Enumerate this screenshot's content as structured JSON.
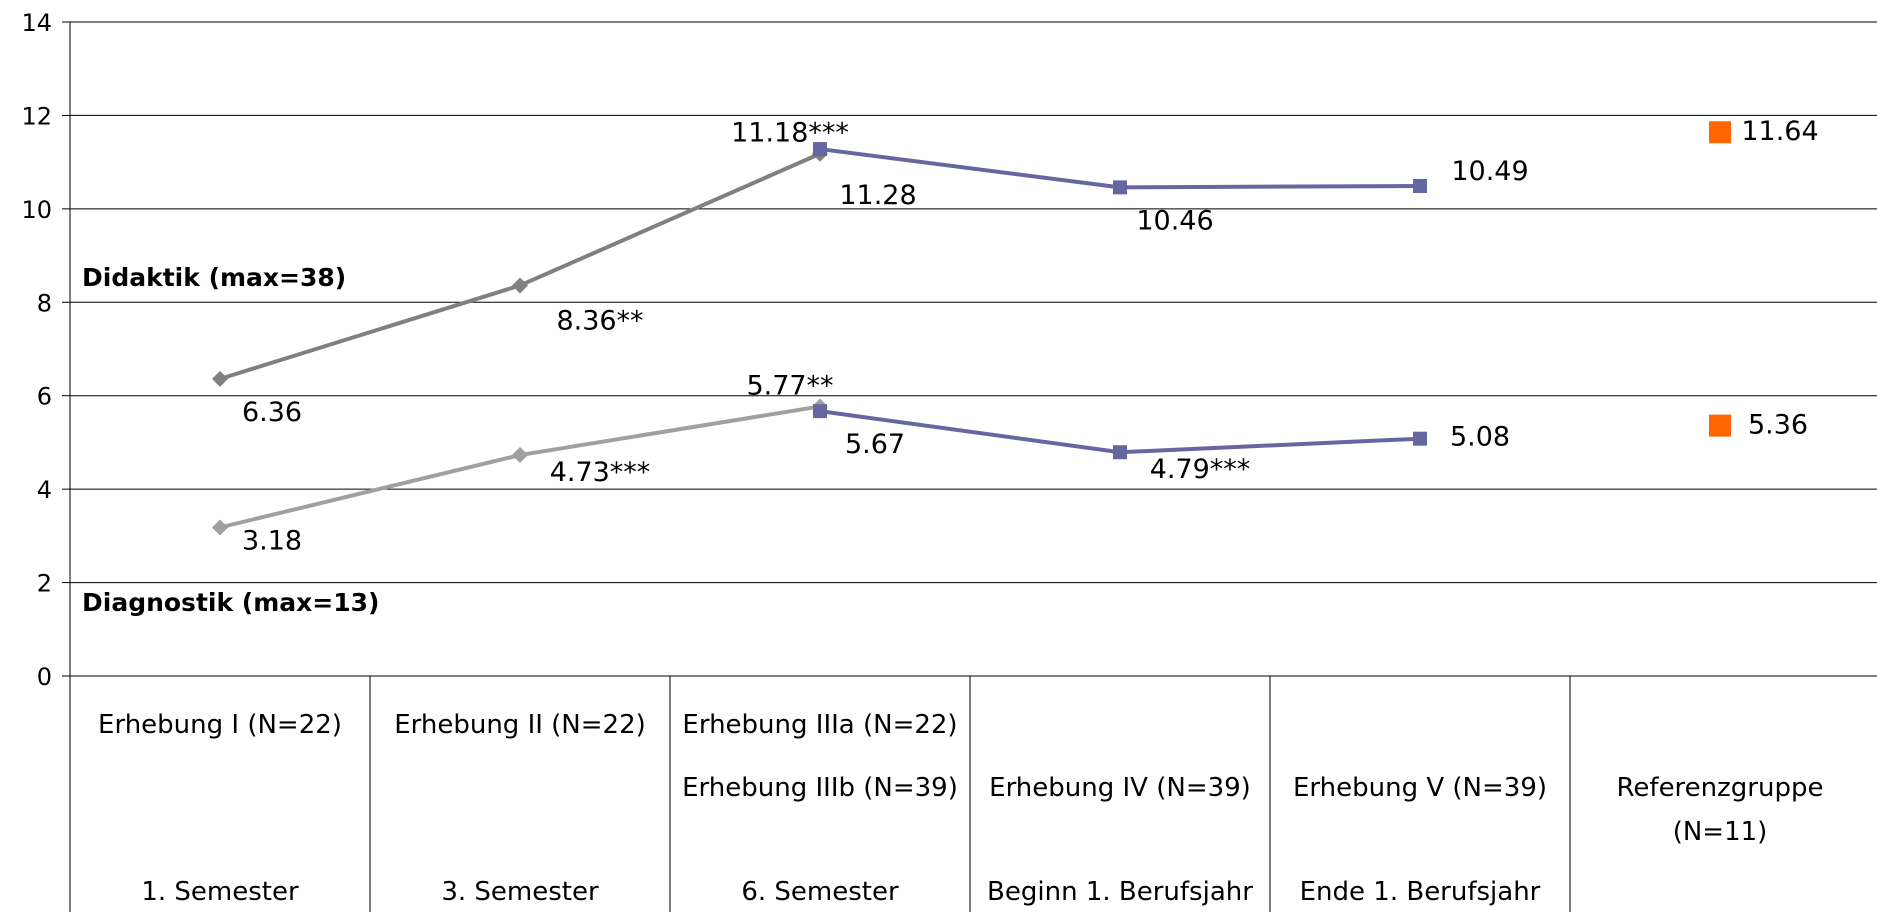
{
  "colors": {
    "gray_dark": "#808080",
    "gray_light": "#a0a0a0",
    "purple": "#6666a0",
    "orange": "#ff6600",
    "grid": "#000000"
  },
  "chart_data": {
    "type": "line",
    "ylim": [
      0,
      14
    ],
    "y_ticks": [
      "0",
      "2",
      "4",
      "6",
      "8",
      "10",
      "12",
      "14"
    ],
    "grid": true,
    "categories": [
      {
        "lines": [
          "Erhebung I (N=22)",
          "",
          "1. Semester"
        ]
      },
      {
        "lines": [
          "Erhebung II (N=22)",
          "",
          "3. Semester"
        ]
      },
      {
        "lines": [
          "Erhebung IIIa (N=22)",
          "Erhebung IIIb (N=39)",
          "6. Semester"
        ]
      },
      {
        "lines": [
          "",
          "Erhebung IV (N=39)",
          "Beginn 1. Berufsjahr"
        ]
      },
      {
        "lines": [
          "",
          "Erhebung V (N=39)",
          "Ende 1. Berufsjahr"
        ]
      },
      {
        "lines": [
          "",
          "Referenzgruppe",
          "(N=11)"
        ]
      }
    ],
    "series_titles": [
      "Didaktik (max=38)",
      "Diagnostik (max=13)"
    ],
    "series": [
      {
        "group": "Didaktik",
        "style": "gray_dark",
        "marker": "diamond",
        "points": [
          {
            "x": 0,
            "y": 6.36,
            "label": "6.36"
          },
          {
            "x": 1,
            "y": 8.36,
            "label": "8.36**"
          },
          {
            "x": 2,
            "y": 11.18,
            "label": "11.18***"
          }
        ]
      },
      {
        "group": "Didaktik",
        "style": "purple",
        "marker": "square",
        "points": [
          {
            "x": 2,
            "y": 11.28,
            "label": "11.28"
          },
          {
            "x": 3,
            "y": 10.46,
            "label": "10.46"
          },
          {
            "x": 4,
            "y": 10.49,
            "label": "10.49"
          }
        ]
      },
      {
        "group": "Didaktik",
        "style": "orange",
        "marker": "square",
        "points": [
          {
            "x": 5,
            "y": 11.64,
            "label": "11.64"
          }
        ]
      },
      {
        "group": "Diagnostik",
        "style": "gray_light",
        "marker": "diamond",
        "points": [
          {
            "x": 0,
            "y": 3.18,
            "label": "3.18"
          },
          {
            "x": 1,
            "y": 4.73,
            "label": "4.73***"
          },
          {
            "x": 2,
            "y": 5.77,
            "label": "5.77**"
          }
        ]
      },
      {
        "group": "Diagnostik",
        "style": "purple",
        "marker": "square",
        "points": [
          {
            "x": 2,
            "y": 5.67,
            "label": "5.67"
          },
          {
            "x": 3,
            "y": 4.79,
            "label": "4.79***"
          },
          {
            "x": 4,
            "y": 5.08,
            "label": "5.08"
          }
        ]
      },
      {
        "group": "Diagnostik",
        "style": "orange",
        "marker": "square",
        "points": [
          {
            "x": 5,
            "y": 5.36,
            "label": "5.36"
          }
        ]
      }
    ]
  }
}
